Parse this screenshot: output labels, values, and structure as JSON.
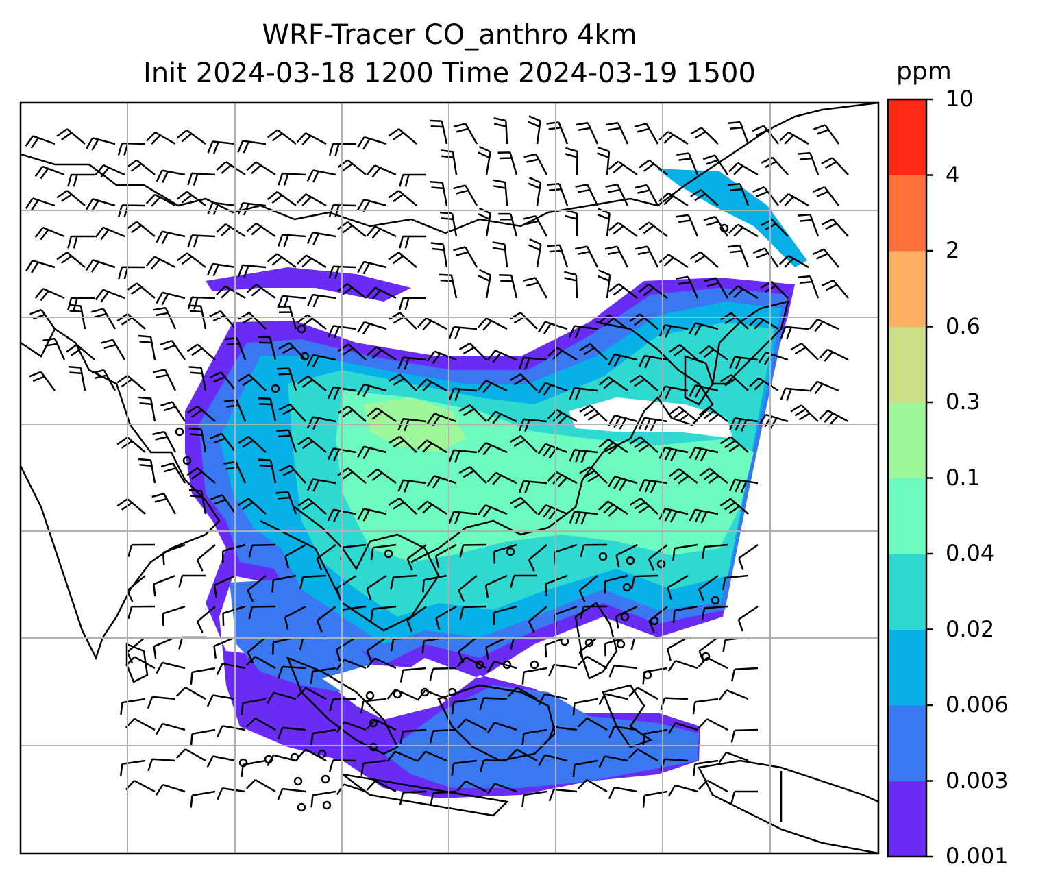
{
  "title": {
    "line1": "WRF-Tracer CO_anthro 4km",
    "line2": "Init 2024-03-18 1200 Time 2024-03-19 1500"
  },
  "colorbar": {
    "unit": "ppm",
    "levels": [
      "0.001",
      "0.003",
      "0.006",
      "0.02",
      "0.04",
      "0.1",
      "0.3",
      "0.6",
      "2",
      "4",
      "10"
    ],
    "colors": [
      "#6a2cf5",
      "#3a78f2",
      "#07b1e8",
      "#2fd9d2",
      "#6cfac0",
      "#9ef79a",
      "#cede86",
      "#ffb061",
      "#ff713a",
      "#ff2a16"
    ]
  },
  "map": {
    "gridlines": true,
    "field": "CO_anthro",
    "plume_colors": {
      "faint": "#6a2cf5",
      "low": "#3a78f2",
      "mid": "#07b1e8",
      "mid_high": "#2fd9d2",
      "high": "#6cfac0",
      "peak": "#9ef79a"
    }
  }
}
